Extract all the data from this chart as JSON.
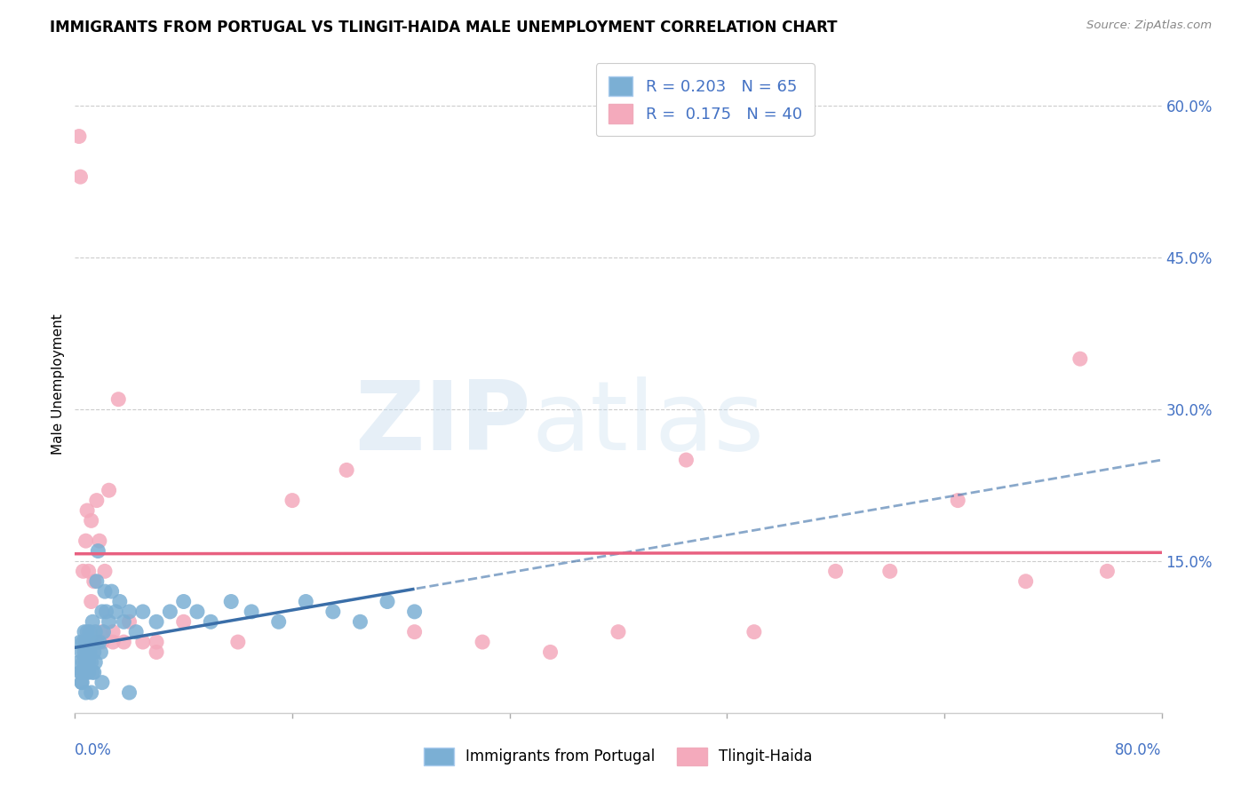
{
  "title": "IMMIGRANTS FROM PORTUGAL VS TLINGIT-HAIDA MALE UNEMPLOYMENT CORRELATION CHART",
  "source": "Source: ZipAtlas.com",
  "ylabel": "Male Unemployment",
  "xlim": [
    0.0,
    0.8
  ],
  "ylim": [
    0.0,
    0.65
  ],
  "yticks": [
    0.0,
    0.15,
    0.3,
    0.45,
    0.6
  ],
  "ytick_labels": [
    "",
    "15.0%",
    "30.0%",
    "45.0%",
    "60.0%"
  ],
  "xticks": [
    0.0,
    0.16,
    0.32,
    0.48,
    0.64,
    0.8
  ],
  "legend_blue_r": "0.203",
  "legend_blue_n": "65",
  "legend_pink_r": "0.175",
  "legend_pink_n": "40",
  "blue_color": "#7BAFD4",
  "pink_color": "#F4AABC",
  "blue_line_color": "#3A6EA8",
  "pink_line_color": "#E86080",
  "tick_label_color": "#4472C4",
  "blue_scatter_x": [
    0.003,
    0.004,
    0.004,
    0.005,
    0.005,
    0.005,
    0.006,
    0.006,
    0.007,
    0.007,
    0.007,
    0.008,
    0.008,
    0.008,
    0.009,
    0.009,
    0.009,
    0.01,
    0.01,
    0.01,
    0.011,
    0.011,
    0.012,
    0.012,
    0.013,
    0.013,
    0.014,
    0.014,
    0.015,
    0.015,
    0.016,
    0.016,
    0.017,
    0.018,
    0.019,
    0.02,
    0.021,
    0.022,
    0.023,
    0.025,
    0.027,
    0.03,
    0.033,
    0.036,
    0.04,
    0.045,
    0.05,
    0.06,
    0.07,
    0.08,
    0.09,
    0.1,
    0.115,
    0.13,
    0.15,
    0.17,
    0.19,
    0.21,
    0.23,
    0.25,
    0.005,
    0.008,
    0.012,
    0.02,
    0.04
  ],
  "blue_scatter_y": [
    0.05,
    0.04,
    0.07,
    0.06,
    0.04,
    0.03,
    0.05,
    0.07,
    0.04,
    0.06,
    0.08,
    0.05,
    0.07,
    0.04,
    0.06,
    0.04,
    0.08,
    0.05,
    0.07,
    0.04,
    0.06,
    0.08,
    0.05,
    0.07,
    0.04,
    0.09,
    0.06,
    0.04,
    0.08,
    0.05,
    0.13,
    0.07,
    0.16,
    0.07,
    0.06,
    0.1,
    0.08,
    0.12,
    0.1,
    0.09,
    0.12,
    0.1,
    0.11,
    0.09,
    0.1,
    0.08,
    0.1,
    0.09,
    0.1,
    0.11,
    0.1,
    0.09,
    0.11,
    0.1,
    0.09,
    0.11,
    0.1,
    0.09,
    0.11,
    0.1,
    0.03,
    0.02,
    0.02,
    0.03,
    0.02
  ],
  "pink_scatter_x": [
    0.003,
    0.004,
    0.006,
    0.008,
    0.009,
    0.01,
    0.012,
    0.014,
    0.016,
    0.018,
    0.02,
    0.022,
    0.025,
    0.028,
    0.032,
    0.036,
    0.04,
    0.05,
    0.06,
    0.08,
    0.12,
    0.16,
    0.2,
    0.25,
    0.3,
    0.35,
    0.4,
    0.45,
    0.5,
    0.56,
    0.6,
    0.65,
    0.7,
    0.74,
    0.76,
    0.012,
    0.016,
    0.02,
    0.028,
    0.06
  ],
  "pink_scatter_y": [
    0.57,
    0.53,
    0.14,
    0.17,
    0.2,
    0.14,
    0.19,
    0.13,
    0.21,
    0.17,
    0.07,
    0.14,
    0.22,
    0.07,
    0.31,
    0.07,
    0.09,
    0.07,
    0.06,
    0.09,
    0.07,
    0.21,
    0.24,
    0.08,
    0.07,
    0.06,
    0.08,
    0.25,
    0.08,
    0.14,
    0.14,
    0.21,
    0.13,
    0.35,
    0.14,
    0.11,
    0.07,
    0.08,
    0.08,
    0.07
  ]
}
